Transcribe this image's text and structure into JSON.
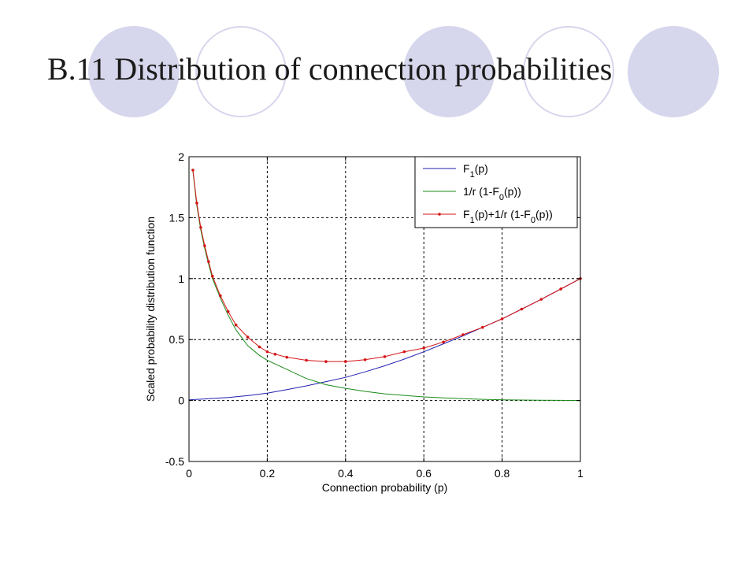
{
  "slide": {
    "title": "B.11 Distribution of connection probabilities"
  },
  "colors": {
    "decor_circle": "#d6d6ec",
    "series_blue": "#1f1fb0",
    "series_green": "#1a8a1a",
    "series_red": "#d41414"
  },
  "chart_data": {
    "type": "line",
    "title": "",
    "xlabel": "Connection probability (p)",
    "ylabel": "Scaled probability distribution function",
    "xlim": [
      0,
      1
    ],
    "ylim": [
      -0.5,
      2
    ],
    "xticks": [
      "0",
      "0.2",
      "0.4",
      "0.6",
      "0.8",
      "1"
    ],
    "yticks": [
      "-0.5",
      "0",
      "0.5",
      "1",
      "1.5",
      "2"
    ],
    "grid": true,
    "legend_position": "top-right",
    "legend": [
      {
        "main": "F",
        "sub": "1",
        "rest": "(p)"
      },
      {
        "main": "1/r (1-F",
        "sub": "0",
        "rest": "(p))"
      },
      {
        "main": "F",
        "sub": "1",
        "rest": "(p)+1/r (1-F",
        "sub2": "0",
        "rest2": "(p))"
      }
    ],
    "series": [
      {
        "color": "#1f1fb0",
        "markers": false,
        "x": [
          0,
          0.05,
          0.1,
          0.15,
          0.2,
          0.25,
          0.3,
          0.35,
          0.4,
          0.45,
          0.5,
          0.55,
          0.6,
          0.65,
          0.7,
          0.75,
          0.8,
          0.85,
          0.9,
          0.95,
          1
        ],
        "y": [
          0.005,
          0.015,
          0.025,
          0.04,
          0.06,
          0.09,
          0.12,
          0.155,
          0.19,
          0.235,
          0.285,
          0.34,
          0.4,
          0.465,
          0.53,
          0.6,
          0.67,
          0.75,
          0.83,
          0.915,
          1.0
        ]
      },
      {
        "color": "#1a8a1a",
        "markers": false,
        "x": [
          0.01,
          0.02,
          0.03,
          0.04,
          0.05,
          0.06,
          0.08,
          0.1,
          0.12,
          0.15,
          0.18,
          0.2,
          0.22,
          0.25,
          0.3,
          0.35,
          0.4,
          0.45,
          0.5,
          0.55,
          0.6,
          0.65,
          0.7,
          0.75,
          0.8,
          0.85,
          0.9,
          0.95,
          1
        ],
        "y": [
          1.88,
          1.6,
          1.4,
          1.25,
          1.12,
          1.0,
          0.84,
          0.7,
          0.58,
          0.45,
          0.37,
          0.33,
          0.3,
          0.255,
          0.18,
          0.13,
          0.1,
          0.075,
          0.055,
          0.042,
          0.03,
          0.022,
          0.015,
          0.01,
          0.006,
          0.004,
          0.002,
          0.001,
          0
        ]
      },
      {
        "color": "#d41414",
        "markers": true,
        "x": [
          0.01,
          0.02,
          0.03,
          0.04,
          0.05,
          0.06,
          0.08,
          0.1,
          0.12,
          0.15,
          0.18,
          0.2,
          0.22,
          0.25,
          0.3,
          0.35,
          0.4,
          0.45,
          0.5,
          0.55,
          0.6,
          0.65,
          0.7,
          0.75,
          0.8,
          0.85,
          0.9,
          0.95,
          1
        ],
        "y": [
          1.89,
          1.62,
          1.42,
          1.27,
          1.14,
          1.02,
          0.86,
          0.73,
          0.62,
          0.52,
          0.44,
          0.4,
          0.38,
          0.355,
          0.33,
          0.32,
          0.32,
          0.335,
          0.36,
          0.4,
          0.43,
          0.48,
          0.54,
          0.6,
          0.67,
          0.75,
          0.83,
          0.915,
          1.0
        ]
      }
    ]
  }
}
